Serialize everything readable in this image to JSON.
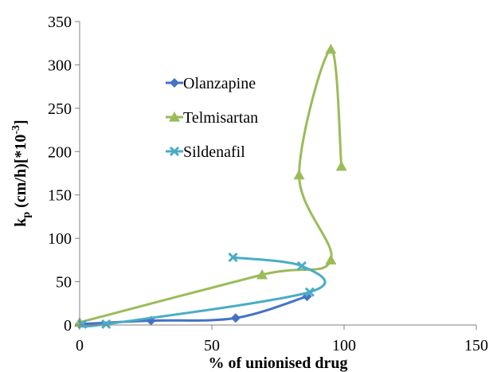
{
  "chart_data": {
    "type": "scatter",
    "title": "",
    "xlabel": "% of unionised drug",
    "ylabel": {
      "main": "k",
      "sub": "p",
      "rest": " (cm/h)[*10",
      "sup": "-3",
      "end": "]"
    },
    "xlim": [
      0,
      150
    ],
    "ylim": [
      0,
      350
    ],
    "xticks": [
      0,
      50,
      100,
      150
    ],
    "yticks": [
      0,
      50,
      100,
      150,
      200,
      250,
      300,
      350
    ],
    "grid": false,
    "legend_position": "upper-left",
    "series": [
      {
        "name": "Olanzapine",
        "color": "#4472C4",
        "marker": "diamond",
        "points": [
          [
            0,
            1
          ],
          [
            27,
            5
          ],
          [
            59,
            8
          ],
          [
            86,
            33
          ]
        ]
      },
      {
        "name": "Telmisartan",
        "color": "#9BBB59",
        "marker": "triangle",
        "points": [
          [
            0,
            3
          ],
          [
            69,
            58
          ],
          [
            95,
            75
          ],
          [
            83,
            173
          ],
          [
            95,
            318
          ],
          [
            99,
            183
          ]
        ]
      },
      {
        "name": "Sildenafil",
        "color": "#4BACC6",
        "marker": "x",
        "points": [
          [
            1,
            1
          ],
          [
            10,
            1
          ],
          [
            87,
            38
          ],
          [
            84,
            68
          ],
          [
            58,
            78
          ]
        ]
      }
    ]
  }
}
